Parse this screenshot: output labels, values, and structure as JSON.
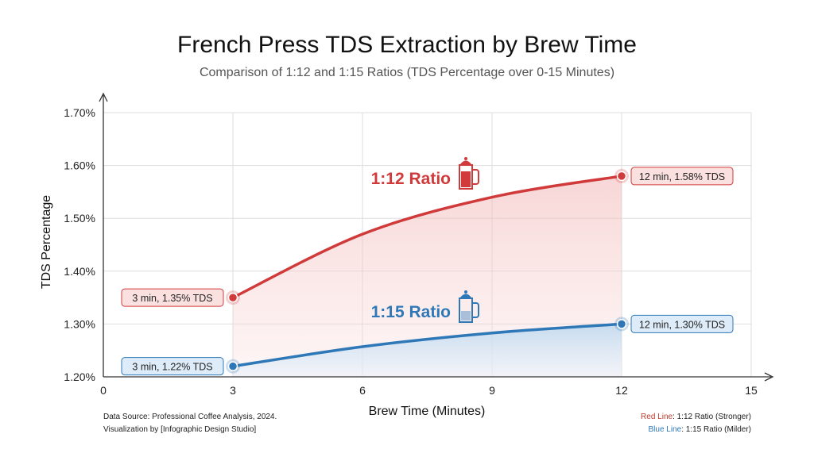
{
  "chart_data": {
    "type": "line",
    "title": "French Press TDS Extraction by Brew Time",
    "subtitle": "Comparison of 1:12 and 1:15 Ratios (TDS Percentage over 0-15 Minutes)",
    "xlabel": "Brew Time (Minutes)",
    "ylabel": "TDS Percentage",
    "xlim": [
      0,
      15
    ],
    "ylim": [
      1.2,
      1.7
    ],
    "xticks": [
      "0",
      "3",
      "6",
      "9",
      "12",
      "15"
    ],
    "yticks": [
      "1.20%",
      "1.30%",
      "1.40%",
      "1.50%",
      "1.60%",
      "1.70%"
    ],
    "grid": true,
    "series": [
      {
        "name": "1:12 Ratio",
        "color": "#d03a3a",
        "fill": "#f4c4c4",
        "x": [
          3,
          6,
          9,
          12
        ],
        "y": [
          1.35,
          1.47,
          1.54,
          1.58
        ],
        "annotations": [
          "3 min, 1.35% TDS",
          "12 min, 1.58% TDS"
        ],
        "icon": "french-press-icon"
      },
      {
        "name": "1:15 Ratio",
        "color": "#2f78b8",
        "fill": "#c9e0f2",
        "x": [
          3,
          6,
          9,
          12
        ],
        "y": [
          1.22,
          1.257,
          1.283,
          1.3
        ],
        "annotations": [
          "3 min, 1.22% TDS",
          "12 min, 1.30% TDS"
        ],
        "icon": "french-press-icon"
      }
    ],
    "source_lines": [
      "Data Source: Professional Coffee Analysis, 2024.",
      "Visualization by [Infographic Design Studio]"
    ],
    "legend": {
      "placement": "bottom-right",
      "items": [
        {
          "key": "Red Line",
          "text": ": 1:12 Ratio (Stronger)",
          "color": "#c0392b"
        },
        {
          "key": "Blue Line",
          "text": ": 1:15 Ratio (Milder)",
          "color": "#2f78b8"
        }
      ]
    }
  }
}
